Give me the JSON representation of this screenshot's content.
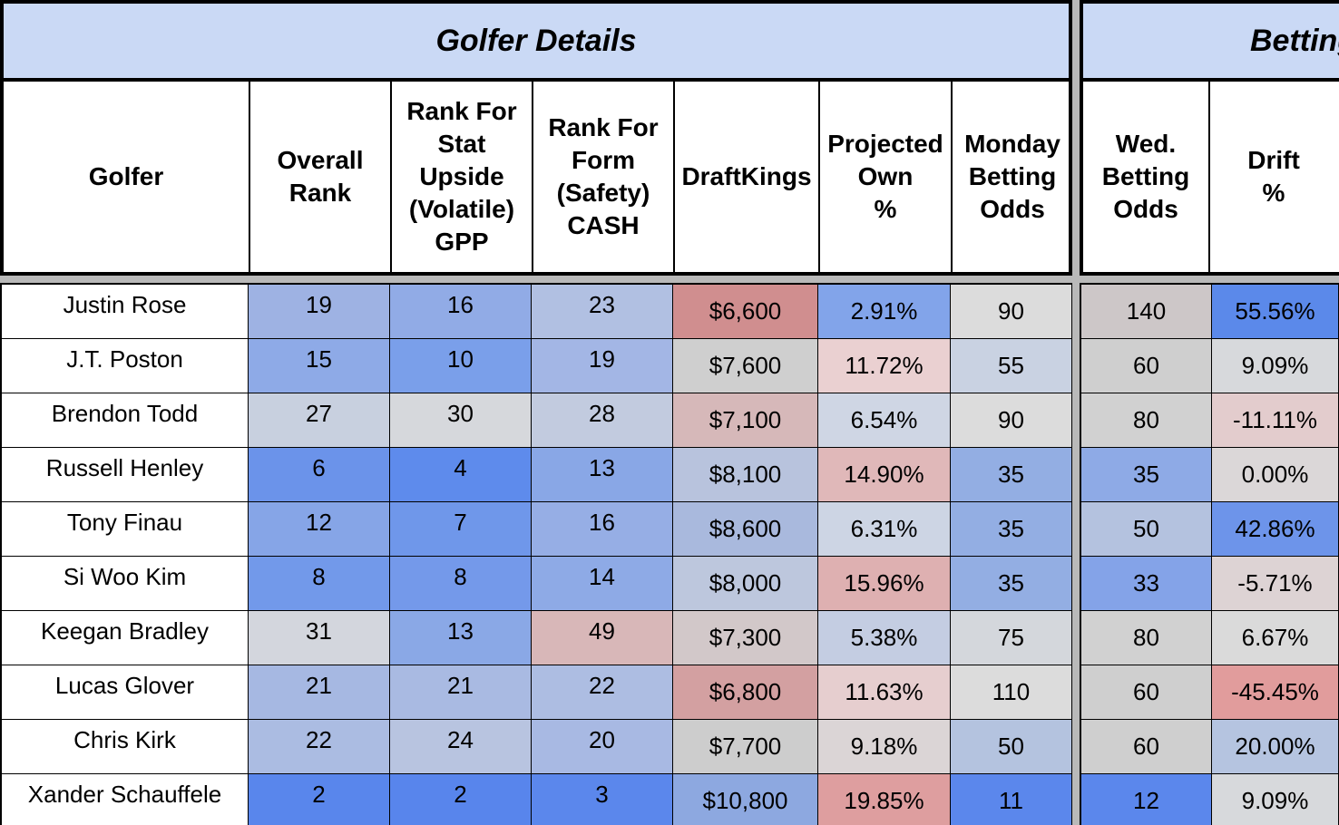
{
  "groups": [
    {
      "title": "Golfer Details"
    },
    {
      "title": "Betting"
    }
  ],
  "columns": [
    {
      "label": "Golfer"
    },
    {
      "label": "Overall\nRank"
    },
    {
      "label": "Rank For\nStat\nUpside\n(Volatile)\nGPP"
    },
    {
      "label": "Rank For\nForm\n(Safety)\nCASH"
    },
    {
      "label": "DraftKings"
    },
    {
      "label": "Projected\nOwn\n%"
    },
    {
      "label": "Monday\nBetting\nOdds"
    },
    {
      "label": "Wed.\nBetting\nOdds"
    },
    {
      "label": "Drift\n%"
    }
  ],
  "rows": [
    {
      "golfer": "Justin Rose",
      "overall": "19",
      "stat": "16",
      "form": "23",
      "dk": "$6,600",
      "own": "2.91%",
      "monday": "90",
      "wed": "140",
      "drift": "55.56%",
      "colors": [
        "#9eb2e3",
        "#91abe6",
        "#b1c0e2",
        "#d08e8f",
        "#82a4ea",
        "#dcdcdc",
        "#cdc7c8",
        "#5b89ea"
      ]
    },
    {
      "golfer": "J.T. Poston",
      "overall": "15",
      "stat": "10",
      "form": "19",
      "dk": "$7,600",
      "own": "11.72%",
      "monday": "55",
      "wed": "60",
      "drift": "9.09%",
      "colors": [
        "#8eaae7",
        "#7a9fea",
        "#a3b6e5",
        "#cfcfcf",
        "#ead0d1",
        "#c9d2e2",
        "#cfcfcf",
        "#d7d9dc"
      ]
    },
    {
      "golfer": "Brendon Todd",
      "overall": "27",
      "stat": "30",
      "form": "28",
      "dk": "$7,100",
      "own": "6.54%",
      "monday": "90",
      "wed": "80",
      "drift": "-11.11%",
      "colors": [
        "#c8d0df",
        "#d6d8dc",
        "#c2cbdf",
        "#d6b8b9",
        "#cfd6e4",
        "#dcdcdc",
        "#d1d1d1",
        "#e3cccd"
      ]
    },
    {
      "golfer": "Russell Henley",
      "overall": "6",
      "stat": "4",
      "form": "13",
      "dk": "$8,100",
      "own": "14.90%",
      "monday": "35",
      "wed": "35",
      "drift": "0.00%",
      "colors": [
        "#6b93ea",
        "#5e8bec",
        "#89a7e6",
        "#b8c3dd",
        "#e0b8b9",
        "#93aee3",
        "#8eaae6",
        "#dbd7d8"
      ]
    },
    {
      "golfer": "Tony Finau",
      "overall": "12",
      "stat": "7",
      "form": "16",
      "dk": "$8,600",
      "own": "6.31%",
      "monday": "35",
      "wed": "50",
      "drift": "42.86%",
      "colors": [
        "#86a5e7",
        "#6f97ea",
        "#96aee5",
        "#a9b9dd",
        "#cdd5e4",
        "#93aee3",
        "#b4c2df",
        "#6d94ea"
      ]
    },
    {
      "golfer": "Si Woo Kim",
      "overall": "8",
      "stat": "8",
      "form": "14",
      "dk": "$8,000",
      "own": "15.96%",
      "monday": "35",
      "wed": "33",
      "drift": "-5.71%",
      "colors": [
        "#7299ea",
        "#7499ea",
        "#8eaae6",
        "#bdc7dd",
        "#deb0b1",
        "#93aee3",
        "#84a3e8",
        "#ddd3d4"
      ]
    },
    {
      "golfer": "Keegan Bradley",
      "overall": "31",
      "stat": "13",
      "form": "49",
      "dk": "$7,300",
      "own": "5.38%",
      "monday": "75",
      "wed": "80",
      "drift": "6.67%",
      "colors": [
        "#d3d6dd",
        "#8aa8e6",
        "#d8b7b8",
        "#d2c8c9",
        "#c4cde2",
        "#d4d7dc",
        "#d1d1d1",
        "#dadada"
      ]
    },
    {
      "golfer": "Lucas Glover",
      "overall": "21",
      "stat": "21",
      "form": "22",
      "dk": "$6,800",
      "own": "11.63%",
      "monday": "110",
      "wed": "60",
      "drift": "-45.45%",
      "colors": [
        "#a6b8e2",
        "#a9bae2",
        "#adbde2",
        "#d3a0a1",
        "#e6cecf",
        "#dcdcdc",
        "#cfcfcf",
        "#e19c9c"
      ]
    },
    {
      "golfer": "Chris Kirk",
      "overall": "22",
      "stat": "24",
      "form": "20",
      "dk": "$7,700",
      "own": "9.18%",
      "monday": "50",
      "wed": "60",
      "drift": "20.00%",
      "colors": [
        "#abbce2",
        "#b8c4e0",
        "#a8b9e3",
        "#cdcdcd",
        "#dbd5d6",
        "#b4c3df",
        "#cfcfcf",
        "#b5c4e0"
      ]
    },
    {
      "golfer": "Xander Schauffele",
      "overall": "2",
      "stat": "2",
      "form": "3",
      "dk": "$10,800",
      "own": "19.85%",
      "monday": "11",
      "wed": "12",
      "drift": "9.09%",
      "colors": [
        "#5986ec",
        "#5885ec",
        "#5b87ec",
        "#8da8e0",
        "#de9e9f",
        "#5b87ec",
        "#5b87ec",
        "#d7d9dc"
      ]
    }
  ]
}
